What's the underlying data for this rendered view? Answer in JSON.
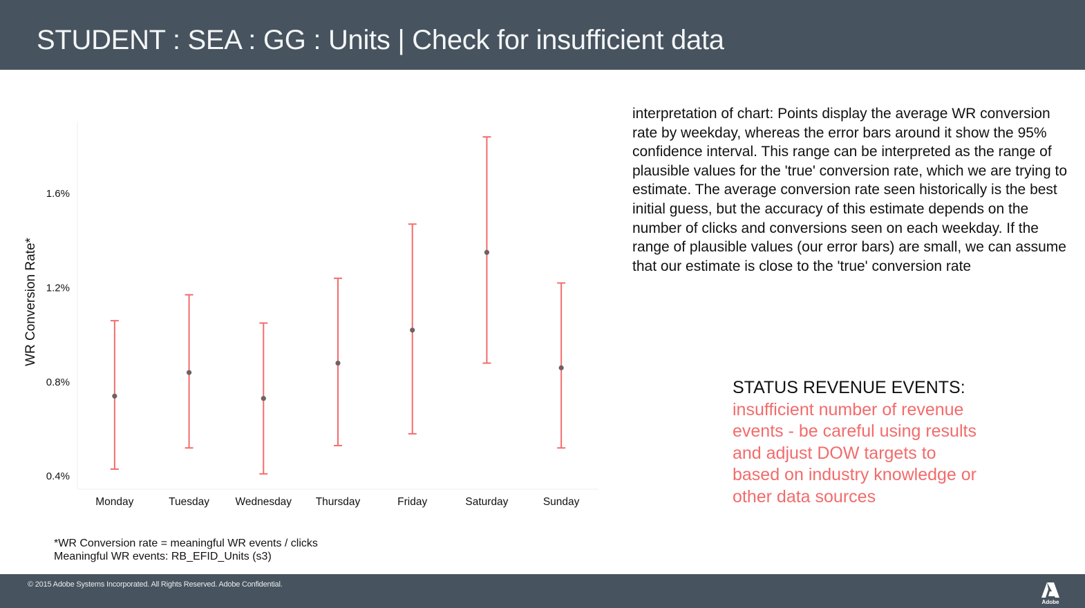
{
  "header": {
    "title": "STUDENT : SEA : GG : Units | Check for insufficient data"
  },
  "chart_data": {
    "type": "scatter",
    "title": "",
    "xlabel": "",
    "ylabel": "WR Conversion Rate*",
    "categories": [
      "Monday",
      "Tuesday",
      "Wednesday",
      "Thursday",
      "Friday",
      "Saturday",
      "Sunday"
    ],
    "series": [
      {
        "values": [
          0.74,
          0.84,
          0.73,
          0.88,
          1.02,
          1.35,
          0.86
        ],
        "lower": [
          0.43,
          0.52,
          0.41,
          0.53,
          0.58,
          0.88,
          0.52
        ],
        "upper": [
          1.06,
          1.17,
          1.05,
          1.24,
          1.47,
          1.84,
          1.22
        ]
      }
    ],
    "yticks": [
      0.4,
      0.8,
      1.2,
      1.6
    ],
    "ytick_labels": [
      "0.4%",
      "0.8%",
      "1.2%",
      "1.6%"
    ],
    "ylim": [
      0.345,
      1.905
    ],
    "grid": false,
    "colors": {
      "errorbar": "#f36b6b",
      "point": "#6f6163"
    }
  },
  "footnote": {
    "line1": "*WR Conversion rate = meaningful WR events / clicks",
    "line2": "Meaningful WR events: RB_EFID_Units (s3)"
  },
  "interpretation": "interpretation of chart: Points display the average WR conversion rate by weekday, whereas the error bars around it show the 95% confidence interval. This range can be interpreted as the range of plausible values for the 'true' conversion rate, which we are trying to estimate. The average conversion rate seen historically is the best initial guess, but the accuracy of this estimate depends on the number of clicks and conversions seen on each weekday. If the range of plausible values (our error bars) are small, we can assume that our estimate is close to the 'true' conversion rate",
  "status": {
    "label": "STATUS REVENUE EVENTS: ",
    "message": "insufficient number of revenue events - be careful using results and adjust DOW targets to based on industry knowledge or other data sources"
  },
  "footer": {
    "copyright": "© 2015 Adobe Systems Incorporated.  All Rights Reserved.  Adobe Confidential.",
    "logo_text": "Adobe"
  }
}
